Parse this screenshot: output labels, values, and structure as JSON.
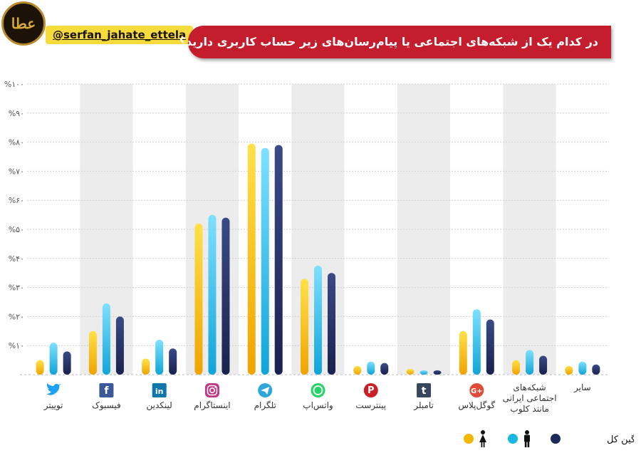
{
  "header": {
    "logo_text": "عطا",
    "handle": "@serfan_jahate_ettela",
    "title": "در کدام یک از شبکه‌های اجتماعی یا پیام‌رسان‌های زیر حساب کاربری دارید؟"
  },
  "chart_data": {
    "type": "bar",
    "title": "در کدام یک از شبکه‌های اجتماعی یا پیام‌رسان‌های زیر حساب کاربری دارید؟",
    "ylim": [
      0,
      100
    ],
    "yticks": [
      "%۰",
      "%۱۰",
      "%۲۰",
      "%۳۰",
      "%۴۰",
      "%۵۰",
      "%۶۰",
      "%۷۰",
      "%۸۰",
      "%۹۰",
      "%۱۰۰"
    ],
    "grid": true,
    "categories": [
      "توییتر",
      "فیسبوک",
      "لینکدین",
      "اینستاگرام",
      "تلگرام",
      "واتس‌اپ",
      "پینترست",
      "تامبلر",
      "گوگل‌پلاس",
      "شبکه‌های اجتماعی ایرانی مانند کلوب",
      "سایر"
    ],
    "category_icons": [
      "twitter-icon",
      "facebook-icon",
      "linkedin-icon",
      "instagram-icon",
      "telegram-icon",
      "whatsapp-icon",
      "pinterest-icon",
      "tumblr-icon",
      "google-plus-icon",
      "",
      ""
    ],
    "series": [
      {
        "name": "",
        "symbol": "female",
        "color": "#f5b800",
        "values": [
          5,
          15,
          5.5,
          52,
          79.5,
          33,
          3,
          2,
          15,
          5,
          3
        ]
      },
      {
        "name": "",
        "symbol": "male",
        "color": "#1ab6e4",
        "values": [
          11,
          24.5,
          12,
          55,
          78,
          37.5,
          4.5,
          1.5,
          22.5,
          8.5,
          4.5
        ]
      },
      {
        "name": "میانگین کل",
        "color": "#1f2a5c",
        "values": [
          8,
          20,
          9,
          54,
          79,
          35,
          4,
          1.5,
          19,
          6.5,
          3.5
        ]
      }
    ],
    "legend_position": "bottom-right"
  }
}
